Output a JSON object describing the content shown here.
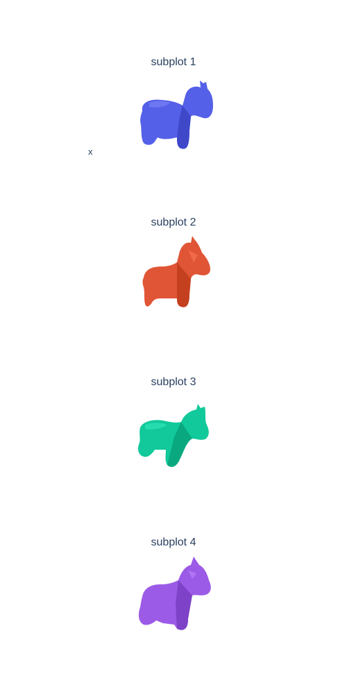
{
  "chart_data": [
    {
      "type": "mesh3d",
      "title": "subplot 1",
      "axis_label": "x",
      "color": "#5560e8",
      "shade": "#3f48c9",
      "highlight": "#6d77f2",
      "pose": "tail-left-facing-right"
    },
    {
      "type": "mesh3d",
      "title": "subplot 2",
      "axis_label": "",
      "color": "#e05535",
      "shade": "#c4401f",
      "highlight": "#f06a48",
      "pose": "standing"
    },
    {
      "type": "mesh3d",
      "title": "subplot 3",
      "axis_label": "",
      "color": "#11c99a",
      "shade": "#0aa87f",
      "highlight": "#26dcae",
      "pose": "leaning"
    },
    {
      "type": "mesh3d",
      "title": "subplot 4",
      "axis_label": "",
      "color": "#9b5be6",
      "shade": "#7e42c8",
      "highlight": "#b076f2",
      "pose": "standing-front"
    }
  ]
}
